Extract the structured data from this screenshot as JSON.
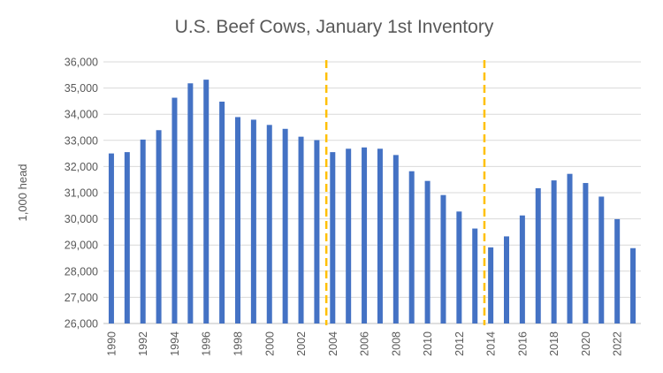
{
  "chart_data": {
    "type": "bar",
    "title": "U.S. Beef Cows, January 1st Inventory",
    "xlabel": "",
    "ylabel": "1,000 head",
    "ylim": [
      26000,
      36000
    ],
    "yticks": [
      26000,
      27000,
      28000,
      29000,
      30000,
      31000,
      32000,
      33000,
      34000,
      35000,
      36000
    ],
    "ytick_labels": [
      "26,000",
      "27,000",
      "28,000",
      "29,000",
      "30,000",
      "31,000",
      "32,000",
      "33,000",
      "34,000",
      "35,000",
      "36,000"
    ],
    "grid": true,
    "categories": [
      1990,
      1991,
      1992,
      1993,
      1994,
      1995,
      1996,
      1997,
      1998,
      1999,
      2000,
      2001,
      2002,
      2003,
      2004,
      2005,
      2006,
      2007,
      2008,
      2009,
      2010,
      2011,
      2012,
      2013,
      2014,
      2015,
      2016,
      2017,
      2018,
      2019,
      2020,
      2021,
      2022,
      2023
    ],
    "xtick_labels": [
      "1990",
      "1992",
      "1994",
      "1996",
      "1998",
      "2000",
      "2002",
      "2004",
      "2006",
      "2008",
      "2010",
      "2012",
      "2014",
      "2016",
      "2018",
      "2020",
      "2022"
    ],
    "values": [
      32500,
      32550,
      33030,
      33390,
      34630,
      35180,
      35320,
      34480,
      33890,
      33790,
      33590,
      33440,
      33140,
      33010,
      32550,
      32680,
      32730,
      32680,
      32440,
      31820,
      31450,
      30910,
      30280,
      29630,
      28910,
      29330,
      30130,
      31170,
      31470,
      31720,
      31370,
      30850,
      29990,
      28880
    ],
    "bar_color": "#4472C4",
    "reference_lines": [
      {
        "year": 2004,
        "color": "#FFC000",
        "style": "dashed"
      },
      {
        "year": 2014,
        "color": "#FFC000",
        "style": "dashed"
      }
    ]
  }
}
